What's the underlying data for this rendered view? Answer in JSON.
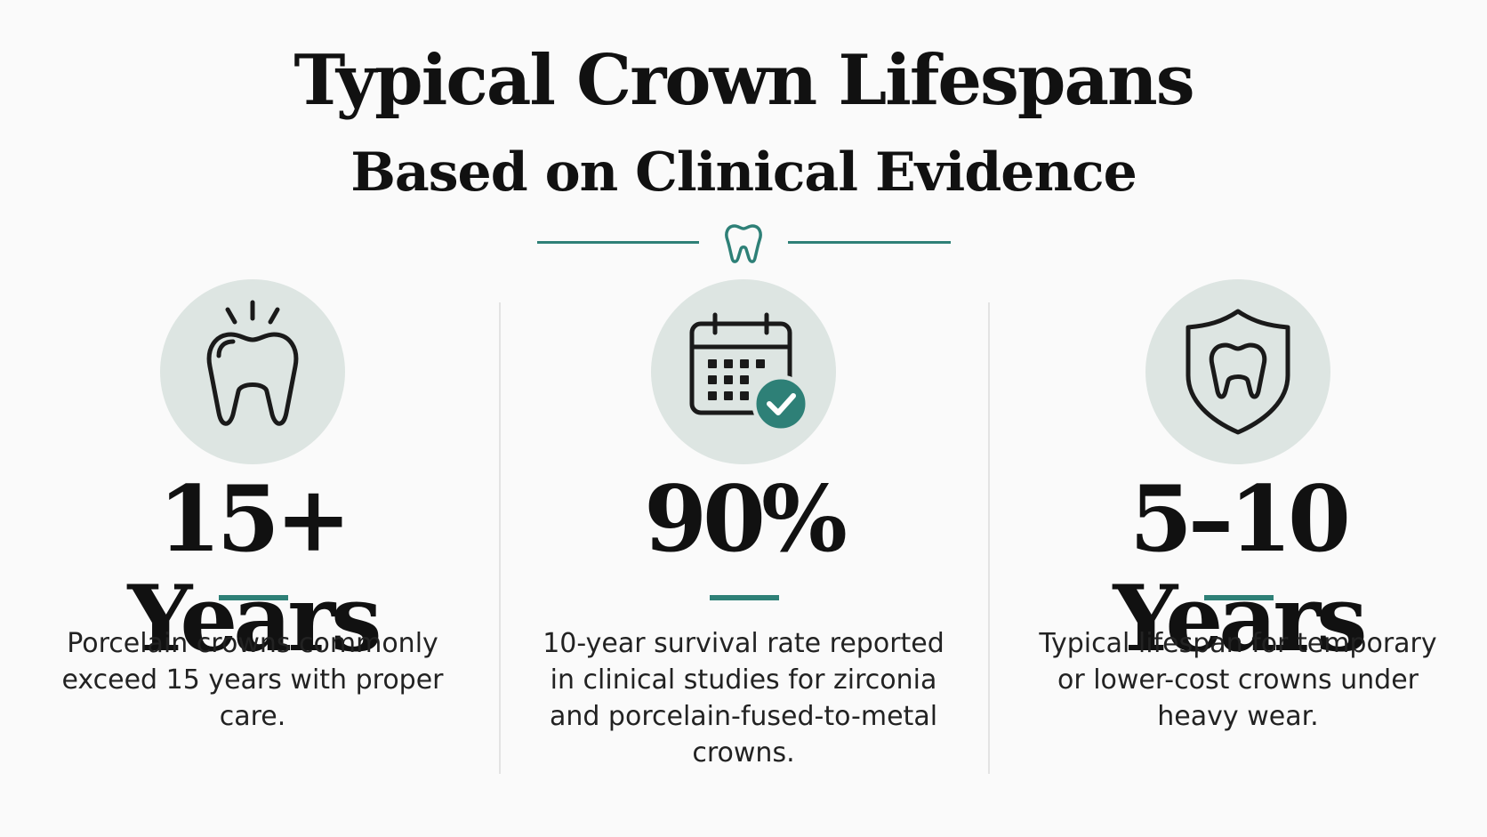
{
  "header": {
    "title": "Typical Crown Lifespans",
    "subtitle": "Based on Clinical Evidence",
    "divider_icon": "tooth-icon"
  },
  "colors": {
    "accent": "#2e8077",
    "icon_circle": "#dde5e2",
    "text": "#111111",
    "background": "#fafafa"
  },
  "cards": [
    {
      "icon": "shining-tooth-icon",
      "stat": "15+ Years",
      "description": "Porcelain crowns commonly exceed 15 years with proper care."
    },
    {
      "icon": "calendar-check-icon",
      "stat": "90%",
      "description": "10-year survival rate reported in clinical studies for zirconia and porcelain-fused-to-metal crowns."
    },
    {
      "icon": "shield-tooth-icon",
      "stat": "5–10 Years",
      "description": "Typical lifespan for temporary or lower-cost crowns under heavy wear."
    }
  ]
}
